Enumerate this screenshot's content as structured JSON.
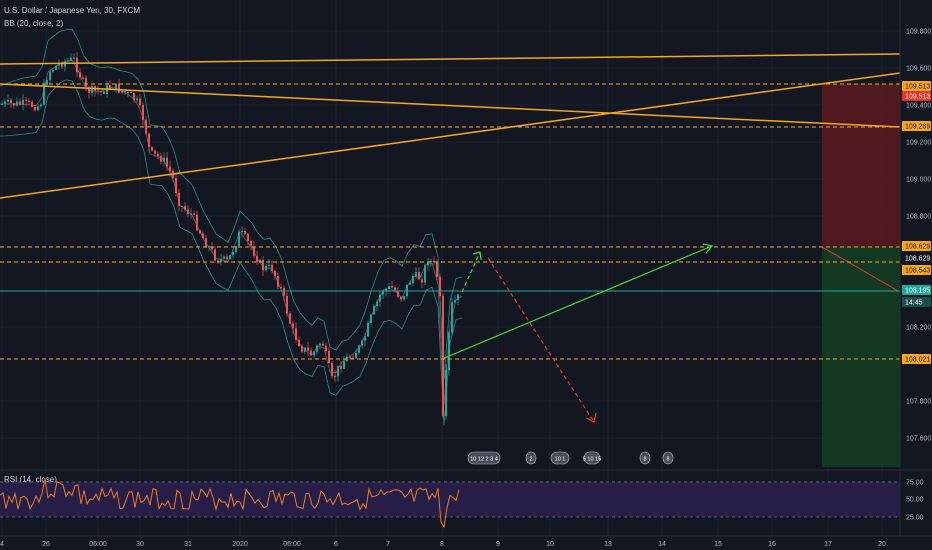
{
  "header": {
    "symbol_line": "U.S. Dollar / Japanese Yen, 30, FXCM",
    "indicator_line": "BB (20, close, 2)"
  },
  "rsi_pane": {
    "label": "RSI (14, close)"
  },
  "price_axis": {
    "ticks": [
      "109.800",
      "109.600",
      "109.400",
      "109.200",
      "109.000",
      "108.800",
      "108.200",
      "107.800",
      "107.600"
    ],
    "badges": [
      {
        "label": "109.513",
        "color": "#f5a623",
        "text_color": "#131722"
      },
      {
        "label": "109.513",
        "color": "#e2372b",
        "text_color": "#ffffff"
      },
      {
        "label": "109.289",
        "color": "#f5a623",
        "text_color": "#131722"
      },
      {
        "label": "108.629",
        "color": "#f5a623",
        "text_color": "#131722"
      },
      {
        "label": "108.629",
        "color": "#131722",
        "text_color": "#ffffff"
      },
      {
        "label": "108.543",
        "color": "#f5a623",
        "text_color": "#131722"
      },
      {
        "label": "108.195",
        "color": "#26a69a",
        "text_color": "#ffffff"
      },
      {
        "label": "14:45",
        "color": "#1e4d4a",
        "text_color": "#ffffff"
      },
      {
        "label": "108.021",
        "color": "#f5a623",
        "text_color": "#131722"
      }
    ]
  },
  "rsi_axis": {
    "ticks": [
      "75.00",
      "50.00",
      "25.00"
    ]
  },
  "time_axis": {
    "ticks": [
      "4",
      "26",
      "06:00",
      "30",
      "31",
      "2020",
      "06:00",
      "6",
      "7",
      "8",
      "9",
      "10",
      "13",
      "14",
      "15",
      "16",
      "17",
      "20"
    ]
  },
  "event_badges": [
    {
      "text": "10 12 2 3 4"
    },
    {
      "text": "2"
    },
    {
      "text": "10 1"
    },
    {
      "text": "5 10 15"
    },
    {
      "text": "8"
    },
    {
      "text": "8"
    }
  ],
  "colors": {
    "background": "#131722",
    "bull": "#26a69a",
    "bear": "#ef5350",
    "trendline": "#f5a623",
    "stop_zone": "#5c1a1e",
    "target_zone": "#143d22",
    "projection_up": "#4cd137",
    "projection_down": "#e2372b",
    "rsi_band": "#2a1f4d",
    "rsi_line": "#e97a2a",
    "bollinger": "#2b8a86"
  }
}
